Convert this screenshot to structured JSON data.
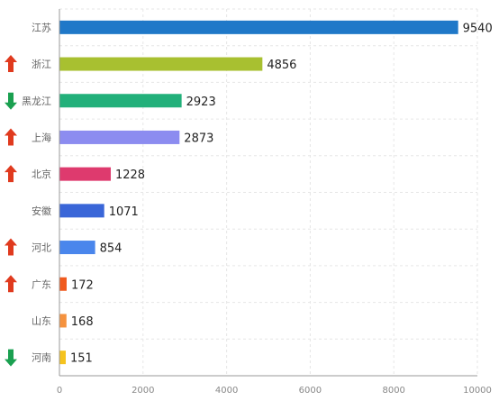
{
  "chart_data": {
    "type": "bar",
    "orientation": "horizontal",
    "categories": [
      "江苏",
      "浙江",
      "黑龙江",
      "上海",
      "北京",
      "安徽",
      "河北",
      "广东",
      "山东",
      "河南"
    ],
    "values": [
      9540,
      4856,
      2923,
      2873,
      1228,
      1071,
      854,
      172,
      168,
      151
    ],
    "trend": [
      "none",
      "up",
      "down",
      "up",
      "up",
      "none",
      "up",
      "up",
      "none",
      "down"
    ],
    "bar_colors": [
      "#1f78c8",
      "#a8c030",
      "#22b07a",
      "#8c8cf0",
      "#de3a6e",
      "#3a66d8",
      "#4a86ec",
      "#f05a1e",
      "#f5923e",
      "#f5c31e"
    ],
    "trend_colors": {
      "up": "#e03a1e",
      "down": "#1aa050"
    },
    "xlim": [
      0,
      10000
    ],
    "x_ticks": [
      0,
      2000,
      4000,
      6000,
      8000,
      10000
    ],
    "grid": true,
    "legend": "none"
  }
}
